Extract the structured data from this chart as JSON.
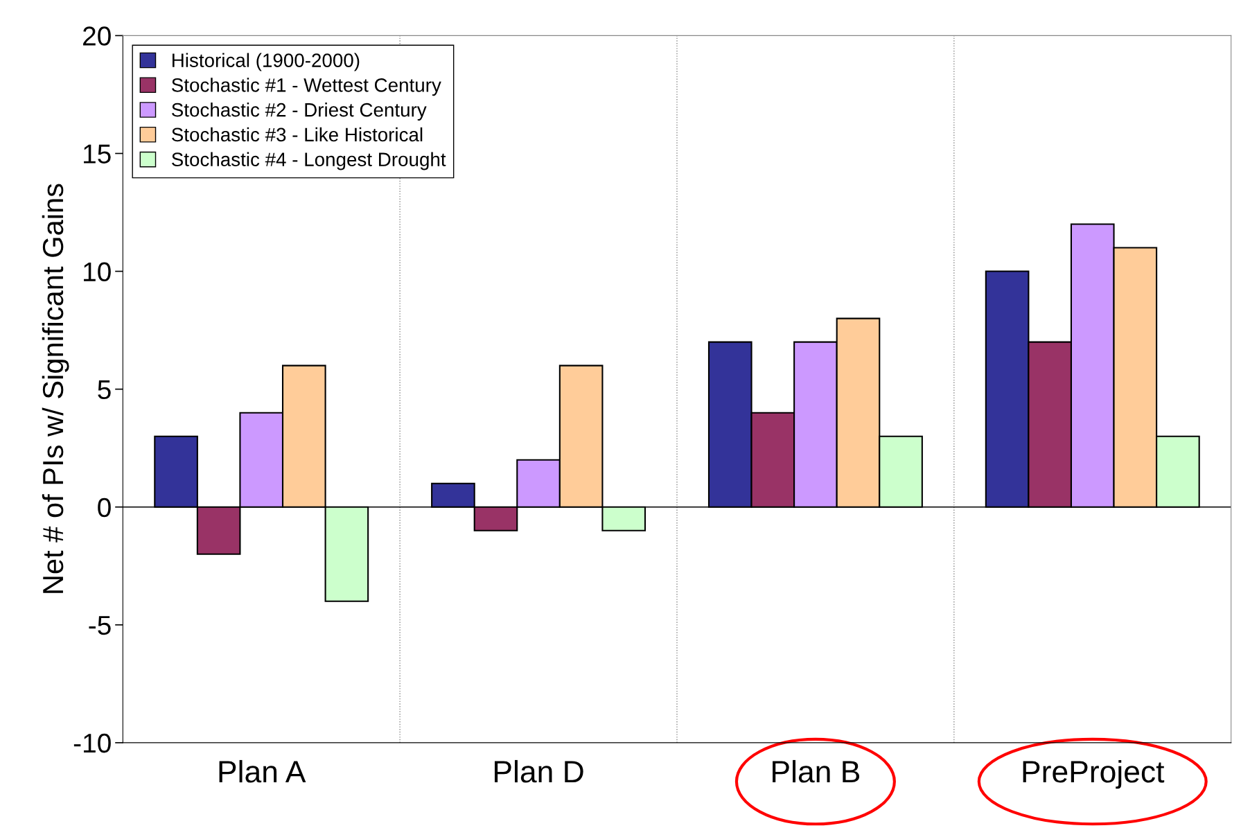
{
  "chart_data": {
    "type": "bar",
    "ylabel": "Net # of PIs w/ Significant Gains",
    "categories": [
      "Plan A",
      "Plan D",
      "Plan B",
      "PreProject"
    ],
    "series": [
      {
        "name": "Historical (1900-2000)",
        "color": "#333399",
        "values": [
          3,
          1,
          7,
          10
        ]
      },
      {
        "name": "Stochastic #1 - Wettest Century",
        "color": "#993366",
        "values": [
          -2,
          -1,
          4,
          7
        ]
      },
      {
        "name": "Stochastic #2 - Driest Century",
        "color": "#cc99ff",
        "values": [
          4,
          2,
          7,
          12
        ]
      },
      {
        "name": "Stochastic #3 - Like Historical",
        "color": "#ffcc99",
        "values": [
          6,
          6,
          8,
          11
        ]
      },
      {
        "name": "Stochastic #4 - Longest Drought",
        "color": "#ccffcc",
        "values": [
          -4,
          -1,
          3,
          3
        ]
      }
    ],
    "ylim": [
      -10,
      20
    ],
    "yticks": [
      -10,
      -5,
      0,
      5,
      10,
      15,
      20
    ],
    "grid": "x",
    "legend": "top left"
  }
}
